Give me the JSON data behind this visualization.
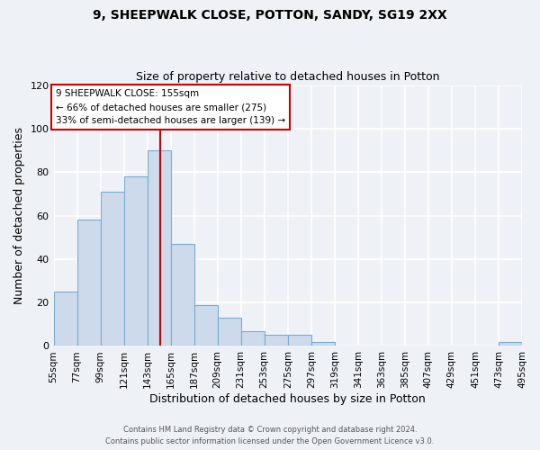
{
  "title1": "9, SHEEPWALK CLOSE, POTTON, SANDY, SG19 2XX",
  "title2": "Size of property relative to detached houses in Potton",
  "xlabel": "Distribution of detached houses by size in Potton",
  "ylabel": "Number of detached properties",
  "bar_color": "#ccdaeb",
  "bar_edge_color": "#7aacce",
  "background_color": "#eef2f7",
  "grid_color": "#ffffff",
  "vline_x": 155,
  "vline_color": "#cc0000",
  "bin_edges": [
    55,
    77,
    99,
    121,
    143,
    165,
    187,
    209,
    231,
    253,
    275,
    297,
    319,
    341,
    363,
    385,
    407,
    429,
    451,
    473,
    495
  ],
  "bin_labels": [
    "55sqm",
    "77sqm",
    "99sqm",
    "121sqm",
    "143sqm",
    "165sqm",
    "187sqm",
    "209sqm",
    "231sqm",
    "253sqm",
    "275sqm",
    "297sqm",
    "319sqm",
    "341sqm",
    "363sqm",
    "385sqm",
    "407sqm",
    "429sqm",
    "451sqm",
    "473sqm",
    "495sqm"
  ],
  "counts": [
    25,
    58,
    71,
    78,
    90,
    47,
    19,
    13,
    7,
    5,
    5,
    2,
    0,
    0,
    0,
    0,
    0,
    0,
    0,
    2
  ],
  "ylim": [
    0,
    120
  ],
  "yticks": [
    0,
    20,
    40,
    60,
    80,
    100,
    120
  ],
  "annotation_title": "9 SHEEPWALK CLOSE: 155sqm",
  "annotation_line1": "← 66% of detached houses are smaller (275)",
  "annotation_line2": "33% of semi-detached houses are larger (139) →",
  "annotation_box_color": "#ffffff",
  "annotation_border_color": "#cc0000",
  "footer1": "Contains HM Land Registry data © Crown copyright and database right 2024.",
  "footer2": "Contains public sector information licensed under the Open Government Licence v3.0."
}
